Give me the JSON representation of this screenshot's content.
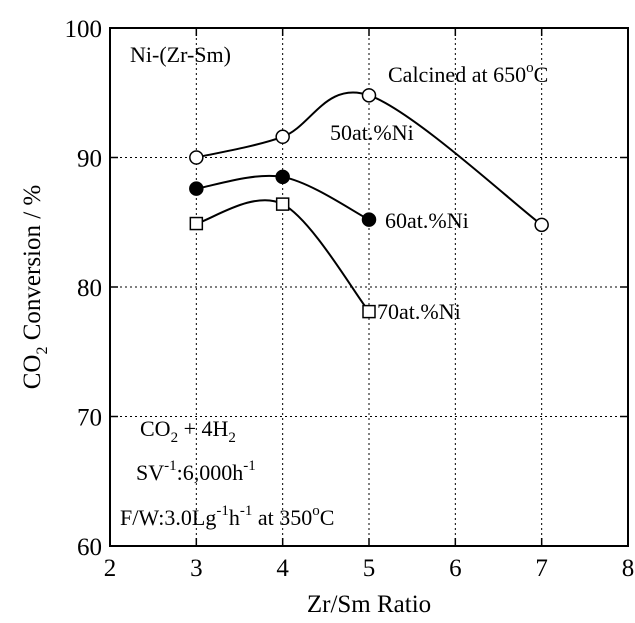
{
  "chart_data": {
    "type": "line",
    "title": "",
    "xlabel": "Zr/Sm Ratio",
    "ylabel_main": "CO",
    "ylabel_sub": "2",
    "ylabel_rest": " Conversion / %",
    "xlim": [
      2,
      8
    ],
    "ylim": [
      60,
      100
    ],
    "x_ticks": [
      2,
      3,
      4,
      5,
      6,
      7,
      8
    ],
    "y_ticks": [
      60,
      70,
      80,
      90,
      100
    ],
    "grid": true,
    "series": [
      {
        "name": "50at.%Ni",
        "marker": "open-circle",
        "x": [
          3,
          4,
          5,
          7
        ],
        "y": [
          90.0,
          91.6,
          94.8,
          84.8
        ]
      },
      {
        "name": "60at.%Ni",
        "marker": "filled-circle",
        "x": [
          3,
          4,
          5
        ],
        "y": [
          87.6,
          88.5,
          85.2
        ]
      },
      {
        "name": "70at.%Ni",
        "marker": "open-square",
        "x": [
          3,
          4,
          5
        ],
        "y": [
          84.9,
          86.4,
          78.1
        ]
      }
    ],
    "annotations": {
      "system": "Ni-(Zr-Sm)",
      "calcined_text": "Calcined at 650",
      "calcined_sup": "o",
      "calcined_unit": "C",
      "reaction_a": "CO",
      "reaction_sub1": "2",
      "reaction_b": " + 4H",
      "reaction_sub2": "2",
      "sv_a": "SV",
      "sv_sup1": "-1",
      "sv_b": ":6,000h",
      "sv_sup2": "-1",
      "fw_a": "F/W:3.0Lg",
      "fw_sup1": "-1",
      "fw_b": "h",
      "fw_sup2": "-1",
      "temp_a": " at 350",
      "temp_sup": "o",
      "temp_unit": "C"
    }
  }
}
